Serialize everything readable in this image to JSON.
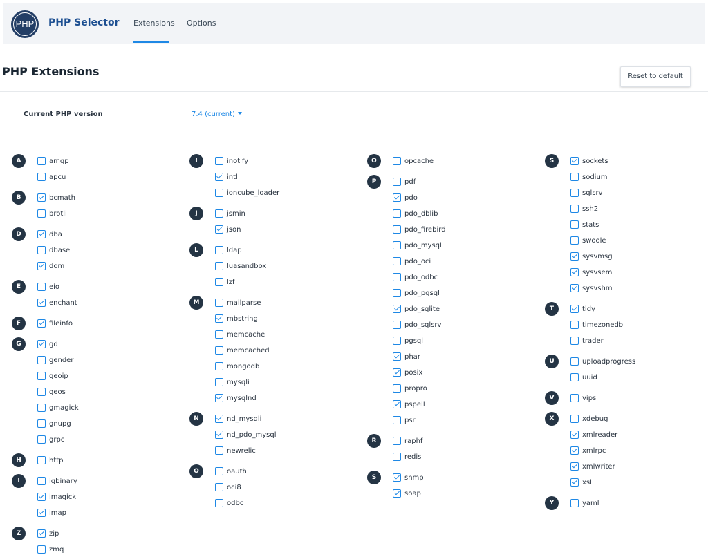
{
  "header": {
    "logo_text": "PHP",
    "app_title": "PHP Selector",
    "tabs": [
      {
        "label": "Extensions",
        "active": true
      },
      {
        "label": "Options",
        "active": false
      }
    ],
    "accent_color": "#1e88e5"
  },
  "page": {
    "title": "PHP Extensions",
    "reset_label": "Reset to default",
    "version_label": "Current PHP version",
    "version_value": "7.4 (current)"
  },
  "columns": [
    {
      "groups": [
        {
          "letter": "A",
          "items": [
            {
              "name": "amqp",
              "checked": false
            },
            {
              "name": "apcu",
              "checked": false
            }
          ]
        },
        {
          "letter": "B",
          "items": [
            {
              "name": "bcmath",
              "checked": true
            },
            {
              "name": "brotli",
              "checked": false
            }
          ]
        },
        {
          "letter": "D",
          "items": [
            {
              "name": "dba",
              "checked": true
            },
            {
              "name": "dbase",
              "checked": false
            },
            {
              "name": "dom",
              "checked": true
            }
          ]
        },
        {
          "letter": "E",
          "items": [
            {
              "name": "eio",
              "checked": false
            },
            {
              "name": "enchant",
              "checked": true
            }
          ]
        },
        {
          "letter": "F",
          "items": [
            {
              "name": "fileinfo",
              "checked": true
            }
          ]
        },
        {
          "letter": "G",
          "items": [
            {
              "name": "gd",
              "checked": true
            },
            {
              "name": "gender",
              "checked": false
            },
            {
              "name": "geoip",
              "checked": false
            },
            {
              "name": "geos",
              "checked": false
            },
            {
              "name": "gmagick",
              "checked": false
            },
            {
              "name": "gnupg",
              "checked": false
            },
            {
              "name": "grpc",
              "checked": false
            }
          ]
        },
        {
          "letter": "H",
          "items": [
            {
              "name": "http",
              "checked": false
            }
          ]
        },
        {
          "letter": "I",
          "items": [
            {
              "name": "igbinary",
              "checked": false
            },
            {
              "name": "imagick",
              "checked": true
            },
            {
              "name": "imap",
              "checked": true
            }
          ]
        },
        {
          "letter": "Z",
          "items": [
            {
              "name": "zip",
              "checked": true
            },
            {
              "name": "zmq",
              "checked": false
            }
          ]
        }
      ]
    },
    {
      "groups": [
        {
          "letter": "I",
          "items": [
            {
              "name": "inotify",
              "checked": false
            },
            {
              "name": "intl",
              "checked": true
            },
            {
              "name": "ioncube_loader",
              "checked": false
            }
          ]
        },
        {
          "letter": "J",
          "items": [
            {
              "name": "jsmin",
              "checked": false
            },
            {
              "name": "json",
              "checked": true
            }
          ]
        },
        {
          "letter": "L",
          "items": [
            {
              "name": "ldap",
              "checked": false
            },
            {
              "name": "luasandbox",
              "checked": false
            },
            {
              "name": "lzf",
              "checked": false
            }
          ]
        },
        {
          "letter": "M",
          "items": [
            {
              "name": "mailparse",
              "checked": false
            },
            {
              "name": "mbstring",
              "checked": true
            },
            {
              "name": "memcache",
              "checked": false
            },
            {
              "name": "memcached",
              "checked": false
            },
            {
              "name": "mongodb",
              "checked": false
            },
            {
              "name": "mysqli",
              "checked": false
            },
            {
              "name": "mysqlnd",
              "checked": true
            }
          ]
        },
        {
          "letter": "N",
          "items": [
            {
              "name": "nd_mysqli",
              "checked": true
            },
            {
              "name": "nd_pdo_mysql",
              "checked": true
            },
            {
              "name": "newrelic",
              "checked": false
            }
          ]
        },
        {
          "letter": "O",
          "items": [
            {
              "name": "oauth",
              "checked": false
            },
            {
              "name": "oci8",
              "checked": false
            },
            {
              "name": "odbc",
              "checked": false
            }
          ]
        }
      ]
    },
    {
      "groups": [
        {
          "letter": "O",
          "items": [
            {
              "name": "opcache",
              "checked": false
            }
          ]
        },
        {
          "letter": "P",
          "items": [
            {
              "name": "pdf",
              "checked": false
            },
            {
              "name": "pdo",
              "checked": true
            },
            {
              "name": "pdo_dblib",
              "checked": false
            },
            {
              "name": "pdo_firebird",
              "checked": false
            },
            {
              "name": "pdo_mysql",
              "checked": false
            },
            {
              "name": "pdo_oci",
              "checked": false
            },
            {
              "name": "pdo_odbc",
              "checked": false
            },
            {
              "name": "pdo_pgsql",
              "checked": false
            },
            {
              "name": "pdo_sqlite",
              "checked": true
            },
            {
              "name": "pdo_sqlsrv",
              "checked": false
            },
            {
              "name": "pgsql",
              "checked": false
            },
            {
              "name": "phar",
              "checked": true
            },
            {
              "name": "posix",
              "checked": true
            },
            {
              "name": "propro",
              "checked": false
            },
            {
              "name": "pspell",
              "checked": true
            },
            {
              "name": "psr",
              "checked": false
            }
          ]
        },
        {
          "letter": "R",
          "items": [
            {
              "name": "raphf",
              "checked": false
            },
            {
              "name": "redis",
              "checked": false
            }
          ]
        },
        {
          "letter": "S",
          "items": [
            {
              "name": "snmp",
              "checked": true
            },
            {
              "name": "soap",
              "checked": true
            }
          ]
        }
      ]
    },
    {
      "groups": [
        {
          "letter": "S",
          "items": [
            {
              "name": "sockets",
              "checked": true
            },
            {
              "name": "sodium",
              "checked": false
            },
            {
              "name": "sqlsrv",
              "checked": false
            },
            {
              "name": "ssh2",
              "checked": false
            },
            {
              "name": "stats",
              "checked": false
            },
            {
              "name": "swoole",
              "checked": false
            },
            {
              "name": "sysvmsg",
              "checked": true
            },
            {
              "name": "sysvsem",
              "checked": true
            },
            {
              "name": "sysvshm",
              "checked": true
            }
          ]
        },
        {
          "letter": "T",
          "items": [
            {
              "name": "tidy",
              "checked": true
            },
            {
              "name": "timezonedb",
              "checked": false
            },
            {
              "name": "trader",
              "checked": false
            }
          ]
        },
        {
          "letter": "U",
          "items": [
            {
              "name": "uploadprogress",
              "checked": false
            },
            {
              "name": "uuid",
              "checked": false
            }
          ]
        },
        {
          "letter": "V",
          "items": [
            {
              "name": "vips",
              "checked": false
            }
          ]
        },
        {
          "letter": "X",
          "items": [
            {
              "name": "xdebug",
              "checked": false
            },
            {
              "name": "xmlreader",
              "checked": true
            },
            {
              "name": "xmlrpc",
              "checked": true
            },
            {
              "name": "xmlwriter",
              "checked": true
            },
            {
              "name": "xsl",
              "checked": true
            }
          ]
        },
        {
          "letter": "Y",
          "items": [
            {
              "name": "yaml",
              "checked": false
            }
          ]
        }
      ]
    }
  ]
}
